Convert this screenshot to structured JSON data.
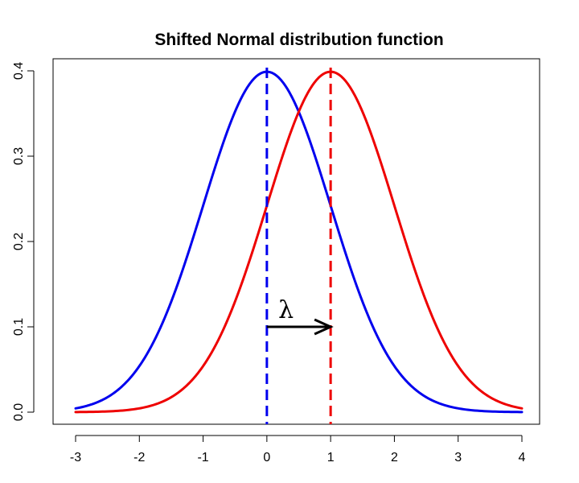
{
  "chart_data": {
    "type": "line",
    "title": "Shifted Normal distribution function",
    "xlabel": "",
    "ylabel": "",
    "xlim": [
      -3,
      4
    ],
    "ylim": [
      0,
      0.4
    ],
    "x_ticks": [
      -3,
      -2,
      -1,
      0,
      1,
      2,
      3,
      4
    ],
    "y_ticks": [
      0.0,
      0.1,
      0.2,
      0.3,
      0.4
    ],
    "x_tick_labels": [
      "-3",
      "-2",
      "-1",
      "0",
      "1",
      "2",
      "3",
      "4"
    ],
    "y_tick_labels": [
      "0.0",
      "0.1",
      "0.2",
      "0.3",
      "0.4"
    ],
    "grid": false,
    "series": [
      {
        "color": "#0000ee",
        "distribution": "normal",
        "mean": 0,
        "sd": 1,
        "x_range": [
          -3,
          4
        ]
      },
      {
        "color": "#ee0000",
        "distribution": "normal",
        "mean": 1,
        "sd": 1,
        "x_range": [
          -3,
          4
        ]
      }
    ],
    "vertical_lines": [
      {
        "x": 0,
        "color": "#0000ee",
        "style": "dashed"
      },
      {
        "x": 1,
        "color": "#ee0000",
        "style": "dashed"
      }
    ],
    "annotations": [
      {
        "type": "arrow",
        "from": [
          0,
          0.1
        ],
        "to": [
          1,
          0.1
        ],
        "color": "#000000"
      },
      {
        "type": "text",
        "text": "λ",
        "x": 0.3,
        "y": 0.12
      }
    ]
  }
}
